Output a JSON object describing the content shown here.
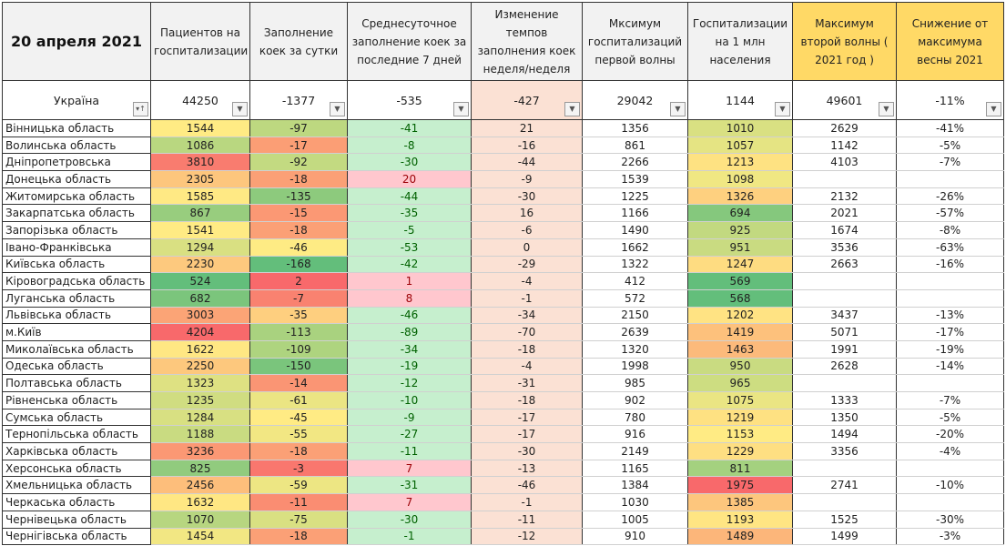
{
  "title": "20 апреля 2021",
  "headers": [
    "Пациентов на госпитализации",
    "Заполнение коек за сутки",
    "Среднесуточное заполнение коек за последние 7 дней",
    "Изменение темпов заполнения коек неделя/неделя",
    "Мксимум госпитализаций первой волны",
    "Госпитализации на 1 млн населения",
    "Максимум второй волны ( 2021 год )",
    "Снижение от максимума весны 2021"
  ],
  "total": {
    "name": "Україна",
    "values": [
      "44250",
      "-1377",
      "-535",
      "-427",
      "29042",
      "1144",
      "49601",
      "-11%"
    ]
  },
  "colors": {
    "green": "#63be7b",
    "yellow": "#ffeb84",
    "red": "#f8696b",
    "pos_fill": "#ffc7ce",
    "pos_text": "#9c0006",
    "neg_fill": "#c6efce",
    "neg_text": "#006100",
    "peach": "#fbe1d4",
    "gold": "#ffd966"
  },
  "rows": [
    {
      "name": "Вінницька область",
      "v": [
        "1544",
        "-97",
        "-41",
        "21",
        "1356",
        "1010",
        "2629",
        "-41%"
      ]
    },
    {
      "name": "Волинська область",
      "v": [
        "1086",
        "-17",
        "-8",
        "-16",
        "861",
        "1057",
        "1142",
        "-5%"
      ]
    },
    {
      "name": "Дніпропетровська",
      "v": [
        "3810",
        "-92",
        "-30",
        "-44",
        "2266",
        "1213",
        "4103",
        "-7%"
      ]
    },
    {
      "name": "Донецька область",
      "v": [
        "2305",
        "-18",
        "20",
        "-9",
        "1539",
        "1098",
        "",
        ""
      ]
    },
    {
      "name": "Житомирська область",
      "v": [
        "1585",
        "-135",
        "-44",
        "-30",
        "1225",
        "1326",
        "2132",
        "-26%"
      ]
    },
    {
      "name": "Закарпатська область",
      "v": [
        "867",
        "-15",
        "-35",
        "16",
        "1166",
        "694",
        "2021",
        "-57%"
      ]
    },
    {
      "name": "Запорізька область",
      "v": [
        "1541",
        "-18",
        "-5",
        "-6",
        "1490",
        "925",
        "1674",
        "-8%"
      ]
    },
    {
      "name": "Івано-Франківська",
      "v": [
        "1294",
        "-46",
        "-53",
        "0",
        "1662",
        "951",
        "3536",
        "-63%"
      ]
    },
    {
      "name": "Київська область",
      "v": [
        "2230",
        "-168",
        "-42",
        "-29",
        "1322",
        "1247",
        "2663",
        "-16%"
      ]
    },
    {
      "name": "Кіровоградська область",
      "v": [
        "524",
        "2",
        "1",
        "-4",
        "412",
        "569",
        "",
        ""
      ]
    },
    {
      "name": "Луганська область",
      "v": [
        "682",
        "-7",
        "8",
        "-1",
        "572",
        "568",
        "",
        ""
      ]
    },
    {
      "name": "Львівська область",
      "v": [
        "3003",
        "-35",
        "-46",
        "-34",
        "2150",
        "1202",
        "3437",
        "-13%"
      ]
    },
    {
      "name": "м.Київ",
      "v": [
        "4204",
        "-113",
        "-89",
        "-70",
        "2639",
        "1419",
        "5071",
        "-17%"
      ]
    },
    {
      "name": "Миколаївська область",
      "v": [
        "1622",
        "-109",
        "-34",
        "-18",
        "1320",
        "1463",
        "1991",
        "-19%"
      ]
    },
    {
      "name": "Одеська область",
      "v": [
        "2250",
        "-150",
        "-19",
        "-4",
        "1998",
        "950",
        "2628",
        "-14%"
      ]
    },
    {
      "name": "Полтавська область",
      "v": [
        "1323",
        "-14",
        "-12",
        "-31",
        "985",
        "965",
        "",
        ""
      ]
    },
    {
      "name": "Рівненська область",
      "v": [
        "1235",
        "-61",
        "-10",
        "-18",
        "902",
        "1075",
        "1333",
        "-7%"
      ]
    },
    {
      "name": "Сумська область",
      "v": [
        "1284",
        "-45",
        "-9",
        "-17",
        "780",
        "1219",
        "1350",
        "-5%"
      ]
    },
    {
      "name": "Тернопільська область",
      "v": [
        "1188",
        "-55",
        "-27",
        "-17",
        "916",
        "1153",
        "1494",
        "-20%"
      ]
    },
    {
      "name": "Харківська область",
      "v": [
        "3236",
        "-18",
        "-11",
        "-30",
        "2149",
        "1229",
        "3356",
        "-4%"
      ]
    },
    {
      "name": "Херсонська область",
      "v": [
        "825",
        "-3",
        "7",
        "-13",
        "1165",
        "811",
        "",
        ""
      ]
    },
    {
      "name": "Хмельницька область",
      "v": [
        "2456",
        "-59",
        "-31",
        "-46",
        "1384",
        "1975",
        "2741",
        "-10%"
      ]
    },
    {
      "name": "Черкаська область",
      "v": [
        "1632",
        "-11",
        "7",
        "-1",
        "1030",
        "1385",
        "",
        ""
      ]
    },
    {
      "name": "Чернівецька область",
      "v": [
        "1070",
        "-75",
        "-30",
        "-11",
        "1005",
        "1193",
        "1525",
        "-30%"
      ]
    },
    {
      "name": "Чернігівська область",
      "v": [
        "1454",
        "-18",
        "-1",
        "-12",
        "910",
        "1489",
        "1499",
        "-3%"
      ]
    }
  ]
}
